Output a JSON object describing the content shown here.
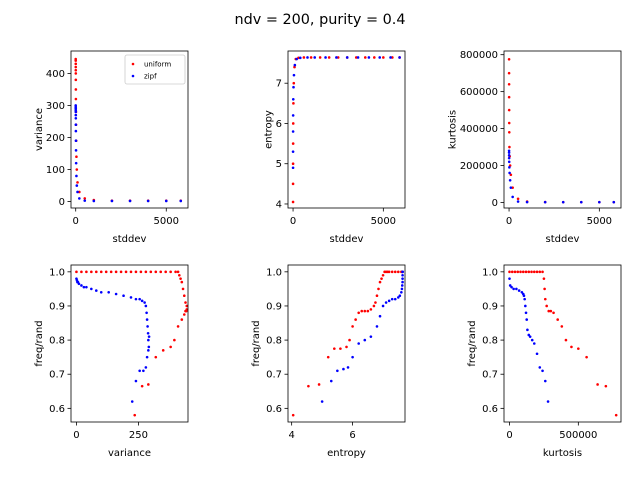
{
  "figure": {
    "title": "ndv = 200, purity = 0.4",
    "colors": {
      "uniform": "#ff0000",
      "zipf": "#0000ff"
    },
    "legend_labels": [
      "uniform",
      "zipf"
    ]
  },
  "chart_data": [
    {
      "type": "scatter",
      "xlabel": "stddev",
      "ylabel": "variance",
      "xlim": [
        -260,
        6200
      ],
      "ylim": [
        -20,
        470
      ],
      "xticks": [
        0,
        5000
      ],
      "yticks": [
        0,
        100,
        200,
        300,
        400
      ],
      "xtick_labels": [
        "0",
        "5000"
      ],
      "ytick_labels": [
        "0",
        "100",
        "200",
        "300",
        "400"
      ],
      "legend": {
        "placement": "top-right",
        "entries": [
          "uniform",
          "zipf"
        ]
      },
      "series": [
        {
          "name": "uniform",
          "color": "#ff0000",
          "x": [
            0,
            1,
            2,
            3,
            4,
            5,
            6,
            8,
            10,
            14,
            18,
            25,
            40,
            60,
            100,
            200,
            500,
            1000,
            2000,
            3000,
            4000,
            5000,
            5800
          ],
          "y": [
            445,
            440,
            430,
            420,
            410,
            400,
            380,
            350,
            320,
            280,
            240,
            190,
            140,
            100,
            60,
            30,
            10,
            5,
            3,
            3,
            3,
            3,
            3
          ]
        },
        {
          "name": "zipf",
          "color": "#0000ff",
          "x": [
            0,
            1,
            2,
            3,
            4,
            5,
            6,
            8,
            10,
            14,
            18,
            25,
            40,
            60,
            100,
            200,
            500,
            1000,
            2000,
            3000,
            4000,
            5000,
            5800
          ],
          "y": [
            300,
            295,
            290,
            285,
            280,
            270,
            260,
            240,
            220,
            190,
            160,
            120,
            80,
            50,
            30,
            10,
            3,
            2,
            2,
            2,
            2,
            2,
            2
          ]
        }
      ]
    },
    {
      "type": "scatter",
      "xlabel": "stddev",
      "ylabel": "entropy",
      "xlim": [
        -280,
        6200
      ],
      "ylim": [
        3.9,
        7.8
      ],
      "xticks": [
        0,
        5000
      ],
      "yticks": [
        4,
        5,
        6,
        7
      ],
      "xtick_labels": [
        "0",
        "5000"
      ],
      "ytick_labels": [
        "4",
        "5",
        "6",
        "7"
      ],
      "series": [
        {
          "name": "uniform",
          "color": "#ff0000",
          "x": [
            0,
            0,
            2,
            5,
            10,
            20,
            40,
            80,
            150,
            300,
            600,
            1000,
            1500,
            2000,
            2500,
            3000,
            3500,
            4000,
            4500,
            5000,
            5500,
            5900
          ],
          "y": [
            4.05,
            4.5,
            5.0,
            5.5,
            6.0,
            6.5,
            7.0,
            7.4,
            7.6,
            7.63,
            7.64,
            7.64,
            7.64,
            7.64,
            7.64,
            7.64,
            7.64,
            7.64,
            7.64,
            7.64,
            7.64,
            7.64
          ]
        },
        {
          "name": "zipf",
          "color": "#0000ff",
          "x": [
            0,
            1,
            3,
            6,
            12,
            25,
            50,
            100,
            200,
            400,
            800,
            1200,
            1800,
            2400,
            3000,
            3600,
            4200,
            4800,
            5400,
            5900
          ],
          "y": [
            4.9,
            5.3,
            5.8,
            6.2,
            6.6,
            6.9,
            7.2,
            7.45,
            7.6,
            7.63,
            7.64,
            7.64,
            7.64,
            7.64,
            7.64,
            7.64,
            7.64,
            7.64,
            7.64,
            7.64
          ]
        }
      ]
    },
    {
      "type": "scatter",
      "xlabel": "stddev",
      "ylabel": "kurtosis",
      "xlim": [
        -280,
        6200
      ],
      "ylim": [
        -30000,
        820000
      ],
      "xticks": [
        0,
        5000
      ],
      "yticks": [
        0,
        200000,
        400000,
        600000,
        800000
      ],
      "xtick_labels": [
        "0",
        "5000"
      ],
      "ytick_labels": [
        "0",
        "200000",
        "400000",
        "600000",
        "800000"
      ],
      "series": [
        {
          "name": "uniform",
          "color": "#ff0000",
          "x": [
            0,
            1,
            2,
            3,
            5,
            8,
            12,
            20,
            35,
            60,
            100,
            200,
            500,
            1000,
            2000,
            3000,
            4000,
            5000,
            5800
          ],
          "y": [
            775000,
            700000,
            640000,
            570000,
            500000,
            430000,
            380000,
            300000,
            250000,
            200000,
            150000,
            80000,
            20000,
            5000,
            2000,
            1500,
            1500,
            1500,
            1500
          ]
        },
        {
          "name": "zipf",
          "color": "#0000ff",
          "x": [
            0,
            1,
            2,
            4,
            8,
            15,
            30,
            60,
            100,
            200,
            500,
            1000,
            2000,
            3000,
            4000,
            5000,
            5800
          ],
          "y": [
            280000,
            270000,
            255000,
            240000,
            220000,
            190000,
            160000,
            120000,
            80000,
            30000,
            5000,
            2000,
            1500,
            1500,
            1500,
            1500,
            1500
          ]
        }
      ]
    },
    {
      "type": "scatter",
      "xlabel": "variance",
      "ylabel": "freq/rand",
      "xlim": [
        -22,
        450
      ],
      "ylim": [
        0.56,
        1.02
      ],
      "xticks": [
        0,
        250
      ],
      "yticks": [
        0.6,
        0.7,
        0.8,
        0.9,
        1.0
      ],
      "xtick_labels": [
        "0",
        "250"
      ],
      "ytick_labels": [
        "0.6",
        "0.7",
        "0.8",
        "0.9",
        "1.0"
      ],
      "series": [
        {
          "name": "uniform",
          "color": "#ff0000",
          "x": [
            0,
            20,
            40,
            60,
            80,
            100,
            120,
            140,
            160,
            180,
            200,
            220,
            240,
            260,
            280,
            300,
            320,
            340,
            360,
            380,
            400,
            410,
            415,
            420,
            425,
            430,
            435,
            440,
            445,
            445,
            443,
            440,
            435,
            425,
            410,
            395,
            380,
            350,
            320,
            290,
            265,
            235
          ],
          "y": [
            1.0,
            1.0,
            1.0,
            1.0,
            1.0,
            1.0,
            1.0,
            1.0,
            1.0,
            1.0,
            1.0,
            1.0,
            1.0,
            1.0,
            1.0,
            1.0,
            1.0,
            1.0,
            1.0,
            1.0,
            1.0,
            1.0,
            0.99,
            0.98,
            0.97,
            0.95,
            0.93,
            0.91,
            0.9,
            0.89,
            0.885,
            0.885,
            0.875,
            0.86,
            0.84,
            0.8,
            0.78,
            0.77,
            0.75,
            0.67,
            0.665,
            0.58
          ]
        },
        {
          "name": "zipf",
          "color": "#0000ff",
          "x": [
            0,
            2,
            4,
            6,
            10,
            20,
            30,
            40,
            60,
            80,
            100,
            130,
            160,
            190,
            220,
            240,
            255,
            265,
            275,
            280,
            283,
            285,
            287,
            289,
            290,
            292,
            293,
            290,
            285,
            280,
            270,
            255,
            240,
            225
          ],
          "y": [
            0.98,
            0.975,
            0.97,
            0.97,
            0.965,
            0.96,
            0.955,
            0.955,
            0.95,
            0.945,
            0.94,
            0.94,
            0.935,
            0.93,
            0.925,
            0.92,
            0.92,
            0.915,
            0.91,
            0.9,
            0.88,
            0.86,
            0.84,
            0.82,
            0.8,
            0.78,
            0.81,
            0.77,
            0.75,
            0.72,
            0.71,
            0.71,
            0.68,
            0.62
          ]
        }
      ]
    },
    {
      "type": "scatter",
      "xlabel": "entropy",
      "ylabel": "freq/rand",
      "xlim": [
        3.88,
        7.72
      ],
      "ylim": [
        0.56,
        1.02
      ],
      "xticks": [
        4,
        6
      ],
      "yticks": [
        0.6,
        0.7,
        0.8,
        0.9,
        1.0
      ],
      "xtick_labels": [
        "4",
        "6"
      ],
      "ytick_labels": [
        "0.6",
        "0.7",
        "0.8",
        "0.9",
        "1.0"
      ],
      "series": [
        {
          "name": "uniform",
          "color": "#ff0000",
          "x": [
            4.05,
            4.55,
            4.9,
            5.2,
            5.4,
            5.6,
            5.8,
            5.9,
            6.0,
            6.1,
            6.2,
            6.3,
            6.4,
            6.5,
            6.6,
            6.7,
            6.75,
            6.8,
            6.85,
            6.9,
            6.95,
            7.0,
            7.05,
            7.1,
            7.15,
            7.2,
            7.3,
            7.4,
            7.5,
            7.6,
            7.64
          ],
          "y": [
            0.58,
            0.665,
            0.67,
            0.75,
            0.775,
            0.775,
            0.78,
            0.8,
            0.84,
            0.86,
            0.88,
            0.885,
            0.885,
            0.885,
            0.89,
            0.9,
            0.91,
            0.93,
            0.95,
            0.97,
            0.98,
            0.99,
            1.0,
            1.0,
            1.0,
            1.0,
            1.0,
            1.0,
            1.0,
            1.0,
            1.0
          ]
        },
        {
          "name": "zipf",
          "color": "#0000ff",
          "x": [
            5.0,
            5.3,
            5.5,
            5.7,
            5.85,
            6.0,
            6.2,
            6.4,
            6.6,
            6.8,
            6.9,
            7.0,
            7.1,
            7.2,
            7.3,
            7.4,
            7.5,
            7.55,
            7.6,
            7.62,
            7.63,
            7.64,
            7.64,
            7.64,
            7.64,
            7.64
          ],
          "y": [
            0.62,
            0.68,
            0.71,
            0.715,
            0.72,
            0.75,
            0.79,
            0.8,
            0.81,
            0.84,
            0.87,
            0.9,
            0.91,
            0.915,
            0.92,
            0.92,
            0.925,
            0.93,
            0.94,
            0.95,
            0.96,
            0.97,
            0.98,
            0.99,
            1.0,
            1.0
          ]
        }
      ]
    },
    {
      "type": "scatter",
      "xlabel": "kurtosis",
      "ylabel": "freq/rand",
      "xlim": [
        -40000,
        810000
      ],
      "ylim": [
        0.56,
        1.02
      ],
      "xticks": [
        0,
        500000
      ],
      "yticks": [
        0.6,
        0.7,
        0.8,
        0.9,
        1.0
      ],
      "xtick_labels": [
        "0",
        "500000"
      ],
      "ytick_labels": [
        "0.6",
        "0.7",
        "0.8",
        "0.9",
        "1.0"
      ],
      "series": [
        {
          "name": "uniform",
          "color": "#ff0000",
          "x": [
            0,
            20000,
            40000,
            60000,
            80000,
            100000,
            120000,
            140000,
            160000,
            180000,
            200000,
            220000,
            240000,
            250000,
            255000,
            260000,
            270000,
            285000,
            300000,
            320000,
            350000,
            380000,
            410000,
            450000,
            500000,
            560000,
            640000,
            700000,
            775000
          ],
          "y": [
            1.0,
            1.0,
            1.0,
            1.0,
            1.0,
            1.0,
            1.0,
            1.0,
            1.0,
            1.0,
            1.0,
            1.0,
            1.0,
            0.98,
            0.95,
            0.92,
            0.9,
            0.885,
            0.885,
            0.88,
            0.86,
            0.84,
            0.8,
            0.78,
            0.775,
            0.75,
            0.67,
            0.665,
            0.58
          ]
        },
        {
          "name": "zipf",
          "color": "#0000ff",
          "x": [
            0,
            5000,
            15000,
            30000,
            50000,
            70000,
            90000,
            100000,
            105000,
            110000,
            115000,
            120000,
            125000,
            130000,
            140000,
            150000,
            165000,
            180000,
            200000,
            220000,
            240000,
            260000,
            280000
          ],
          "y": [
            0.98,
            0.96,
            0.955,
            0.95,
            0.95,
            0.945,
            0.94,
            0.935,
            0.93,
            0.92,
            0.9,
            0.88,
            0.86,
            0.83,
            0.815,
            0.81,
            0.8,
            0.79,
            0.76,
            0.72,
            0.71,
            0.68,
            0.62
          ]
        }
      ]
    }
  ]
}
